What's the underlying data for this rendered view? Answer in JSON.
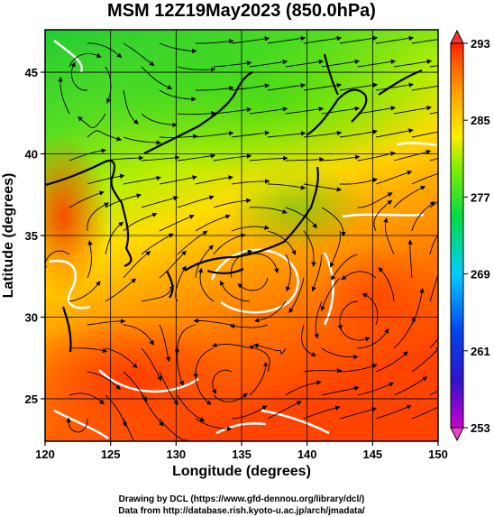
{
  "title": "MSM 12Z19May2023 (850.0hPa)",
  "x_axis": {
    "label": "Longitude (degrees)",
    "range": [
      120,
      150
    ],
    "ticks": [
      "120",
      "125",
      "130",
      "135",
      "140",
      "145",
      "150"
    ]
  },
  "y_axis": {
    "label": "Latitude  (degrees)",
    "range": [
      22.4,
      47.6
    ],
    "ticks": [
      "25",
      "30",
      "35",
      "40",
      "45"
    ]
  },
  "colorbar": {
    "range": [
      253,
      293
    ],
    "ticks": [
      "253",
      "261",
      "269",
      "277",
      "285",
      "293"
    ],
    "colors": [
      "#cc00cc",
      "#2222cc",
      "#0066ee",
      "#00ccff",
      "#00dd66",
      "#22cc22",
      "#aaee00",
      "#ffee00",
      "#ffaa00",
      "#ff6600",
      "#ff2200"
    ]
  },
  "field": {
    "variable_colors": {
      "north": "#33cc33",
      "middle": "#bbee00",
      "south": "#ff5500"
    },
    "streamlines": true,
    "coastlines": true,
    "grid": true
  },
  "credits": [
    "Drawing by DCL (https://www.gfd-dennou.org/library/dcl/)",
    "Data from http://database.rish.kyoto-u.ac.jp/arch/jmadata/"
  ]
}
